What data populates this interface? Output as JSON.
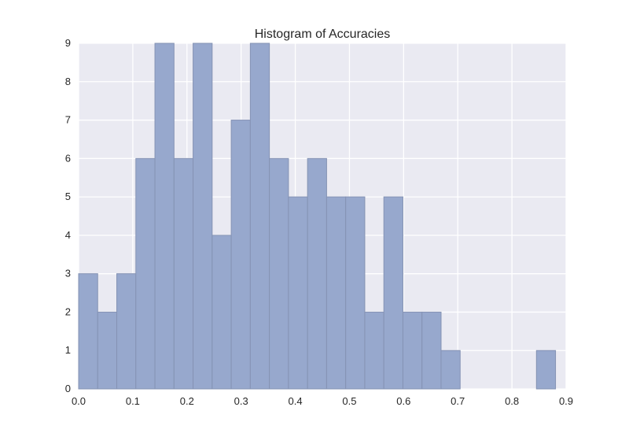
{
  "chart_data": {
    "type": "bar",
    "title": "Histogram of Accuracies",
    "xlabel": "",
    "ylabel": "",
    "xlim": [
      0.0,
      0.9
    ],
    "ylim": [
      0,
      9
    ],
    "grid": true,
    "x_ticks": [
      "0.0",
      "0.1",
      "0.2",
      "0.3",
      "0.4",
      "0.5",
      "0.6",
      "0.7",
      "0.8",
      "0.9"
    ],
    "y_ticks": [
      "0",
      "1",
      "2",
      "3",
      "4",
      "5",
      "6",
      "7",
      "8",
      "9"
    ],
    "bin_start": 0.0,
    "bin_width": 0.03522,
    "values": [
      3,
      2,
      3,
      6,
      9,
      6,
      9,
      4,
      7,
      9,
      6,
      5,
      6,
      5,
      5,
      2,
      5,
      2,
      2,
      1,
      0,
      0,
      0,
      0,
      1
    ],
    "colors": {
      "bar_fill": "#97a8cd",
      "bar_edge": "#8593b4",
      "plot_bg": "#eaeaf2",
      "grid": "#ffffff",
      "text": "#262626"
    }
  }
}
